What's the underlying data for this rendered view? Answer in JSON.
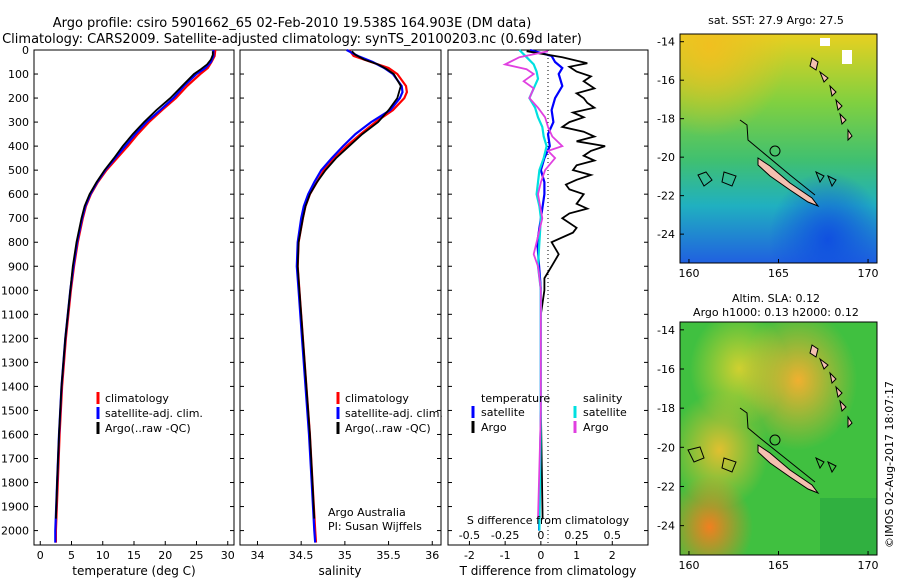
{
  "header": {
    "line1": "Argo profile: csiro 5901662_65 02-Feb-2010 19.538S 164.903E (DM data)",
    "line2": "Climatology: CARS2009. Satellite-adjusted climatology: synTS_20100203.nc (0.69d later)"
  },
  "colors": {
    "climatology": "#ff0000",
    "satellite": "#0000ff",
    "argo": "#000000",
    "salinity_sat": "#00e0e0",
    "salinity_argo": "#e040e0"
  },
  "chart_data": [
    {
      "type": "line",
      "id": "temperature",
      "xlabel": "temperature (deg C)",
      "xlim": [
        -1,
        31
      ],
      "ylim": [
        0,
        2060
      ],
      "x_ticks": [
        0,
        5,
        10,
        15,
        20,
        25,
        30
      ],
      "y_ticks": [
        0,
        100,
        200,
        300,
        400,
        500,
        600,
        700,
        800,
        900,
        1000,
        1100,
        1200,
        1300,
        1400,
        1500,
        1600,
        1700,
        1800,
        1900,
        2000
      ],
      "legend": [
        "climatology",
        "satellite-adj. clim.",
        "Argo(..raw -QC)"
      ],
      "series": [
        {
          "name": "climatology",
          "depth": [
            0,
            25,
            50,
            75,
            100,
            150,
            200,
            250,
            300,
            350,
            400,
            450,
            500,
            550,
            600,
            650,
            700,
            800,
            900,
            1000,
            1200,
            1400,
            1600,
            1800,
            2000,
            2050
          ],
          "values": [
            28.0,
            27.9,
            27.4,
            26.8,
            25.6,
            23.5,
            21.7,
            19.5,
            17.4,
            15.6,
            14.0,
            12.3,
            10.6,
            9.2,
            8.1,
            7.3,
            6.8,
            6.0,
            5.4,
            4.9,
            4.1,
            3.5,
            3.1,
            2.8,
            2.5,
            2.5
          ]
        },
        {
          "name": "satellite-adj. clim.",
          "depth": [
            0,
            25,
            50,
            75,
            100,
            150,
            200,
            250,
            300,
            350,
            400,
            450,
            500,
            550,
            600,
            650,
            700,
            800,
            900,
            1000,
            1200,
            1400,
            1600,
            1800,
            2000,
            2050
          ],
          "values": [
            27.7,
            27.7,
            27.3,
            26.4,
            25.0,
            23.0,
            21.3,
            19.2,
            17.0,
            15.2,
            13.6,
            12.0,
            10.4,
            9.1,
            8.0,
            7.2,
            6.7,
            5.9,
            5.3,
            4.8,
            4.0,
            3.4,
            3.0,
            2.7,
            2.4,
            2.4
          ]
        },
        {
          "name": "Argo(..raw -QC)",
          "depth": [
            5,
            20,
            40,
            60,
            80,
            100,
            150,
            200,
            250,
            300,
            350,
            400,
            450,
            500,
            550,
            600,
            650,
            700,
            800,
            900,
            1000,
            1200,
            1400,
            1600,
            1800,
            1950
          ],
          "values": [
            27.6,
            27.6,
            27.3,
            26.7,
            25.7,
            24.6,
            22.7,
            20.8,
            18.6,
            16.6,
            14.8,
            13.2,
            11.8,
            10.3,
            9.0,
            7.9,
            7.1,
            6.6,
            5.8,
            5.2,
            4.8,
            4.0,
            3.4,
            3.0,
            2.7,
            2.5
          ]
        }
      ]
    },
    {
      "type": "line",
      "id": "salinity",
      "xlabel": "salinity",
      "xlim": [
        33.8,
        36.1
      ],
      "ylim": [
        0,
        2060
      ],
      "x_ticks": [
        34,
        34.5,
        35,
        35.5,
        36
      ],
      "legend": [
        "climatology",
        "satellite-adj. clim.",
        "Argo(..raw -QC)"
      ],
      "annotation": [
        "Argo Australia",
        "PI: Susan Wijffels"
      ],
      "series": [
        {
          "name": "climatology",
          "depth": [
            0,
            25,
            50,
            75,
            100,
            150,
            175,
            200,
            250,
            300,
            350,
            400,
            450,
            500,
            550,
            600,
            650,
            700,
            800,
            900,
            1000,
            1200,
            1400,
            1600,
            1800,
            2000,
            2050
          ],
          "values": [
            35.05,
            35.1,
            35.3,
            35.5,
            35.6,
            35.7,
            35.71,
            35.68,
            35.55,
            35.35,
            35.18,
            35.02,
            34.88,
            34.76,
            34.68,
            34.6,
            34.55,
            34.52,
            34.47,
            34.46,
            34.48,
            34.52,
            34.56,
            34.6,
            34.63,
            34.66,
            34.67
          ]
        },
        {
          "name": "satellite-adj. clim.",
          "depth": [
            0,
            25,
            50,
            75,
            100,
            150,
            175,
            200,
            250,
            300,
            350,
            400,
            450,
            500,
            550,
            600,
            650,
            700,
            800,
            900,
            1000,
            1200,
            1400,
            1600,
            1800,
            2000,
            2050
          ],
          "values": [
            35.02,
            35.15,
            35.32,
            35.45,
            35.55,
            35.65,
            35.66,
            35.63,
            35.52,
            35.3,
            35.12,
            34.98,
            34.85,
            34.73,
            34.65,
            34.58,
            34.53,
            34.5,
            34.46,
            34.45,
            34.47,
            34.51,
            34.55,
            34.59,
            34.62,
            34.65,
            34.66
          ]
        },
        {
          "name": "Argo(..raw -QC)",
          "depth": [
            5,
            20,
            40,
            60,
            80,
            100,
            150,
            200,
            250,
            300,
            350,
            400,
            450,
            500,
            550,
            600,
            650,
            700,
            800,
            900,
            1000,
            1200,
            1400,
            1600,
            1800,
            1950
          ],
          "values": [
            35.08,
            35.12,
            35.22,
            35.38,
            35.48,
            35.56,
            35.64,
            35.6,
            35.5,
            35.38,
            35.2,
            35.05,
            34.9,
            34.78,
            34.68,
            34.6,
            34.55,
            34.52,
            34.47,
            34.46,
            34.48,
            34.52,
            34.56,
            34.6,
            34.63,
            34.65
          ]
        }
      ]
    },
    {
      "type": "line",
      "id": "differences",
      "xlabel": "T difference from climatology",
      "xlabel_top": "S difference from climatology",
      "xlim": [
        -2.6,
        3.0
      ],
      "ylim": [
        0,
        2060
      ],
      "x_ticks": [
        -2,
        -1,
        0,
        1,
        2
      ],
      "s_ticks": [
        -0.5,
        -0.25,
        0,
        0.25,
        0.5
      ],
      "s_scale": 4,
      "legend_t_title": "temperature",
      "legend_s_title": "salinity",
      "legend_t": [
        "satellite",
        "Argo"
      ],
      "legend_s": [
        "satellite",
        "Argo"
      ],
      "series": [
        {
          "name": "temperature satellite",
          "quantity": "T",
          "depth": [
            0,
            25,
            50,
            75,
            100,
            150,
            200,
            250,
            300,
            350,
            400,
            450,
            500,
            550,
            600,
            700,
            800,
            900,
            1000,
            1200,
            1500,
            2000
          ],
          "values": [
            -0.3,
            0.3,
            0.4,
            0.6,
            0.5,
            0.6,
            0.4,
            0.3,
            0.35,
            0.2,
            0.25,
            0.1,
            0.0,
            0.1,
            0.1,
            0.0,
            -0.1,
            -0.05,
            0,
            0,
            0,
            -0.05
          ]
        },
        {
          "name": "temperature Argo",
          "quantity": "T",
          "depth": [
            5,
            30,
            55,
            70,
            90,
            110,
            130,
            160,
            180,
            200,
            220,
            240,
            260,
            280,
            300,
            320,
            340,
            360,
            380,
            400,
            420,
            440,
            460,
            480,
            500,
            520,
            540,
            560,
            580,
            600,
            640,
            660,
            680,
            700,
            740,
            760,
            800,
            850,
            900,
            950,
            1000,
            1100,
            1200,
            1500,
            1950
          ],
          "values": [
            -0.4,
            0.6,
            1.3,
            0.8,
            1.0,
            1.4,
            1.2,
            1.5,
            1.0,
            1.2,
            1.3,
            1.5,
            0.9,
            1.2,
            0.8,
            0.6,
            1.2,
            1.5,
            1.0,
            1.8,
            1.4,
            1.2,
            1.5,
            1.0,
            0.9,
            1.4,
            1.0,
            0.7,
            0.8,
            1.2,
            1.0,
            1.3,
            0.8,
            0.6,
            1.0,
            0.9,
            0.3,
            0.5,
            0.3,
            0.1,
            0.1,
            0.0,
            0.0,
            0.0,
            0.05
          ]
        },
        {
          "name": "salinity satellite",
          "quantity": "S",
          "depth": [
            0,
            30,
            60,
            90,
            120,
            160,
            200,
            240,
            280,
            320,
            360,
            400,
            450,
            500,
            550,
            600,
            650,
            700,
            800,
            900,
            1000,
            1200,
            1500,
            2000
          ],
          "values": [
            -0.15,
            -0.1,
            -0.05,
            -0.03,
            -0.02,
            -0.05,
            -0.08,
            -0.04,
            -0.02,
            0.01,
            0.02,
            0.04,
            0.02,
            -0.01,
            -0.02,
            -0.03,
            -0.01,
            0.0,
            -0.01,
            -0.02,
            0.0,
            0.0,
            0.0,
            -0.01
          ]
        },
        {
          "name": "salinity Argo",
          "quantity": "S",
          "depth": [
            5,
            30,
            60,
            80,
            100,
            130,
            160,
            200,
            240,
            280,
            320,
            360,
            400,
            420,
            450,
            500,
            550,
            600,
            700,
            800,
            850,
            900,
            1000,
            1200,
            1500,
            1950
          ],
          "values": [
            0.05,
            -0.15,
            -0.25,
            -0.1,
            -0.05,
            -0.12,
            -0.05,
            -0.08,
            -0.02,
            0.03,
            0.05,
            0.08,
            0.15,
            0.05,
            0.1,
            0.03,
            0.0,
            -0.02,
            0.01,
            -0.03,
            -0.05,
            -0.02,
            0.0,
            0.0,
            0.0,
            -0.02
          ]
        }
      ]
    }
  ],
  "maps": {
    "sst": {
      "title": "sat. SST: 27.9 Argo: 27.5",
      "x_ticks": [
        "160",
        "165",
        "170"
      ],
      "y_ticks": [
        "-14",
        "-16",
        "-18",
        "-20",
        "-22",
        "-24"
      ]
    },
    "sla": {
      "title_line1": "Altim. SLA: 0.12",
      "title_line2": "Argo h1000: 0.13 h2000: 0.12",
      "x_ticks": [
        "160",
        "165",
        "170"
      ],
      "y_ticks": [
        "-14",
        "-16",
        "-18",
        "-20",
        "-22",
        "-24"
      ]
    }
  },
  "credit": "©IMOS 02-Aug-2017 18:07:17"
}
